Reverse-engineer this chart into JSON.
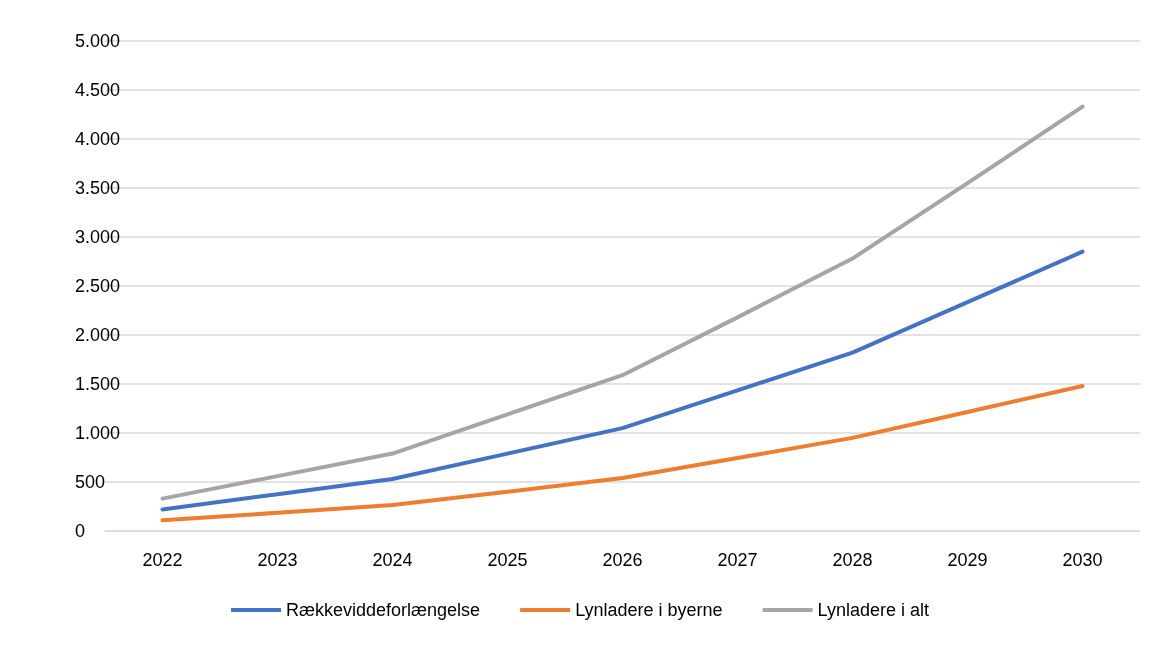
{
  "chart_data": {
    "type": "line",
    "categories": [
      "2022",
      "2023",
      "2024",
      "2025",
      "2026",
      "2027",
      "2028",
      "2029",
      "2030"
    ],
    "series": [
      {
        "name": "Rækkeviddeforlængelse",
        "color": "#4472c4",
        "values": [
          220,
          375,
          530,
          790,
          1050,
          1435,
          1820,
          2335,
          2850
        ]
      },
      {
        "name": "Lynladere i byerne",
        "color": "#ed7d31",
        "values": [
          110,
          185,
          265,
          400,
          540,
          745,
          950,
          1215,
          1480
        ]
      },
      {
        "name": "Lynladere i alt",
        "color": "#a5a5a5",
        "values": [
          330,
          560,
          790,
          1190,
          1590,
          2180,
          2780,
          3550,
          4330
        ]
      }
    ],
    "ylim": [
      0,
      5000
    ],
    "yticks": [
      0,
      500,
      {
        "value": 1000,
        "label": "1.000"
      },
      {
        "value": 1500,
        "label": "1.500"
      },
      {
        "value": 2000,
        "label": "2.000"
      },
      {
        "value": 2500,
        "label": "2.500"
      },
      {
        "value": 3000,
        "label": "3.000"
      },
      {
        "value": 3500,
        "label": "3.500"
      },
      {
        "value": 4000,
        "label": "4.000"
      },
      {
        "value": 4500,
        "label": "4.500"
      },
      {
        "value": 5000,
        "label": "5.000"
      }
    ],
    "grid": "y",
    "legend": "bottom",
    "marker": "none",
    "line_style": "solid"
  }
}
